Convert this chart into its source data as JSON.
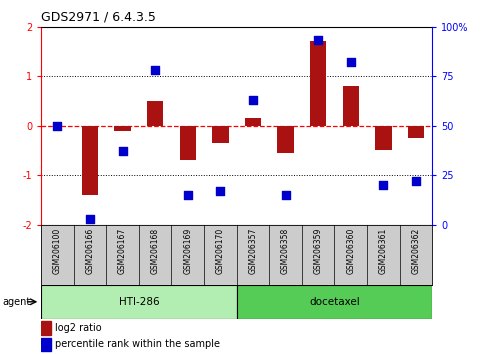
{
  "title": "GDS2971 / 6.4.3.5",
  "samples": [
    "GSM206100",
    "GSM206166",
    "GSM206167",
    "GSM206168",
    "GSM206169",
    "GSM206170",
    "GSM206357",
    "GSM206358",
    "GSM206359",
    "GSM206360",
    "GSM206361",
    "GSM206362"
  ],
  "log2_ratio": [
    0.0,
    -1.4,
    -0.1,
    0.5,
    -0.7,
    -0.35,
    0.15,
    -0.55,
    1.7,
    0.8,
    -0.5,
    -0.25
  ],
  "percentile": [
    50,
    3,
    37,
    78,
    15,
    17,
    63,
    15,
    93,
    82,
    20,
    22
  ],
  "groups": [
    {
      "label": "HTI-286",
      "start": 0,
      "end": 5,
      "color_light": "#B2EDB2",
      "color_dark": "#3CB371"
    },
    {
      "label": "docetaxel",
      "start": 6,
      "end": 11,
      "color_light": "#3CB371",
      "color_dark": "#3CB371"
    }
  ],
  "bar_color": "#AA1111",
  "dot_color": "#0000CC",
  "ylim_left": [
    -2,
    2
  ],
  "yticks_left": [
    -2,
    -1,
    0,
    1,
    2
  ],
  "yticks_right": [
    0,
    25,
    50,
    75,
    100
  ],
  "ytick_labels_right": [
    "0",
    "25",
    "50",
    "75",
    "100%"
  ],
  "legend_ratio_label": "log2 ratio",
  "legend_pct_label": "percentile rank within the sample",
  "sample_bg": "#CCCCCC",
  "fig_bg": "#FFFFFF"
}
